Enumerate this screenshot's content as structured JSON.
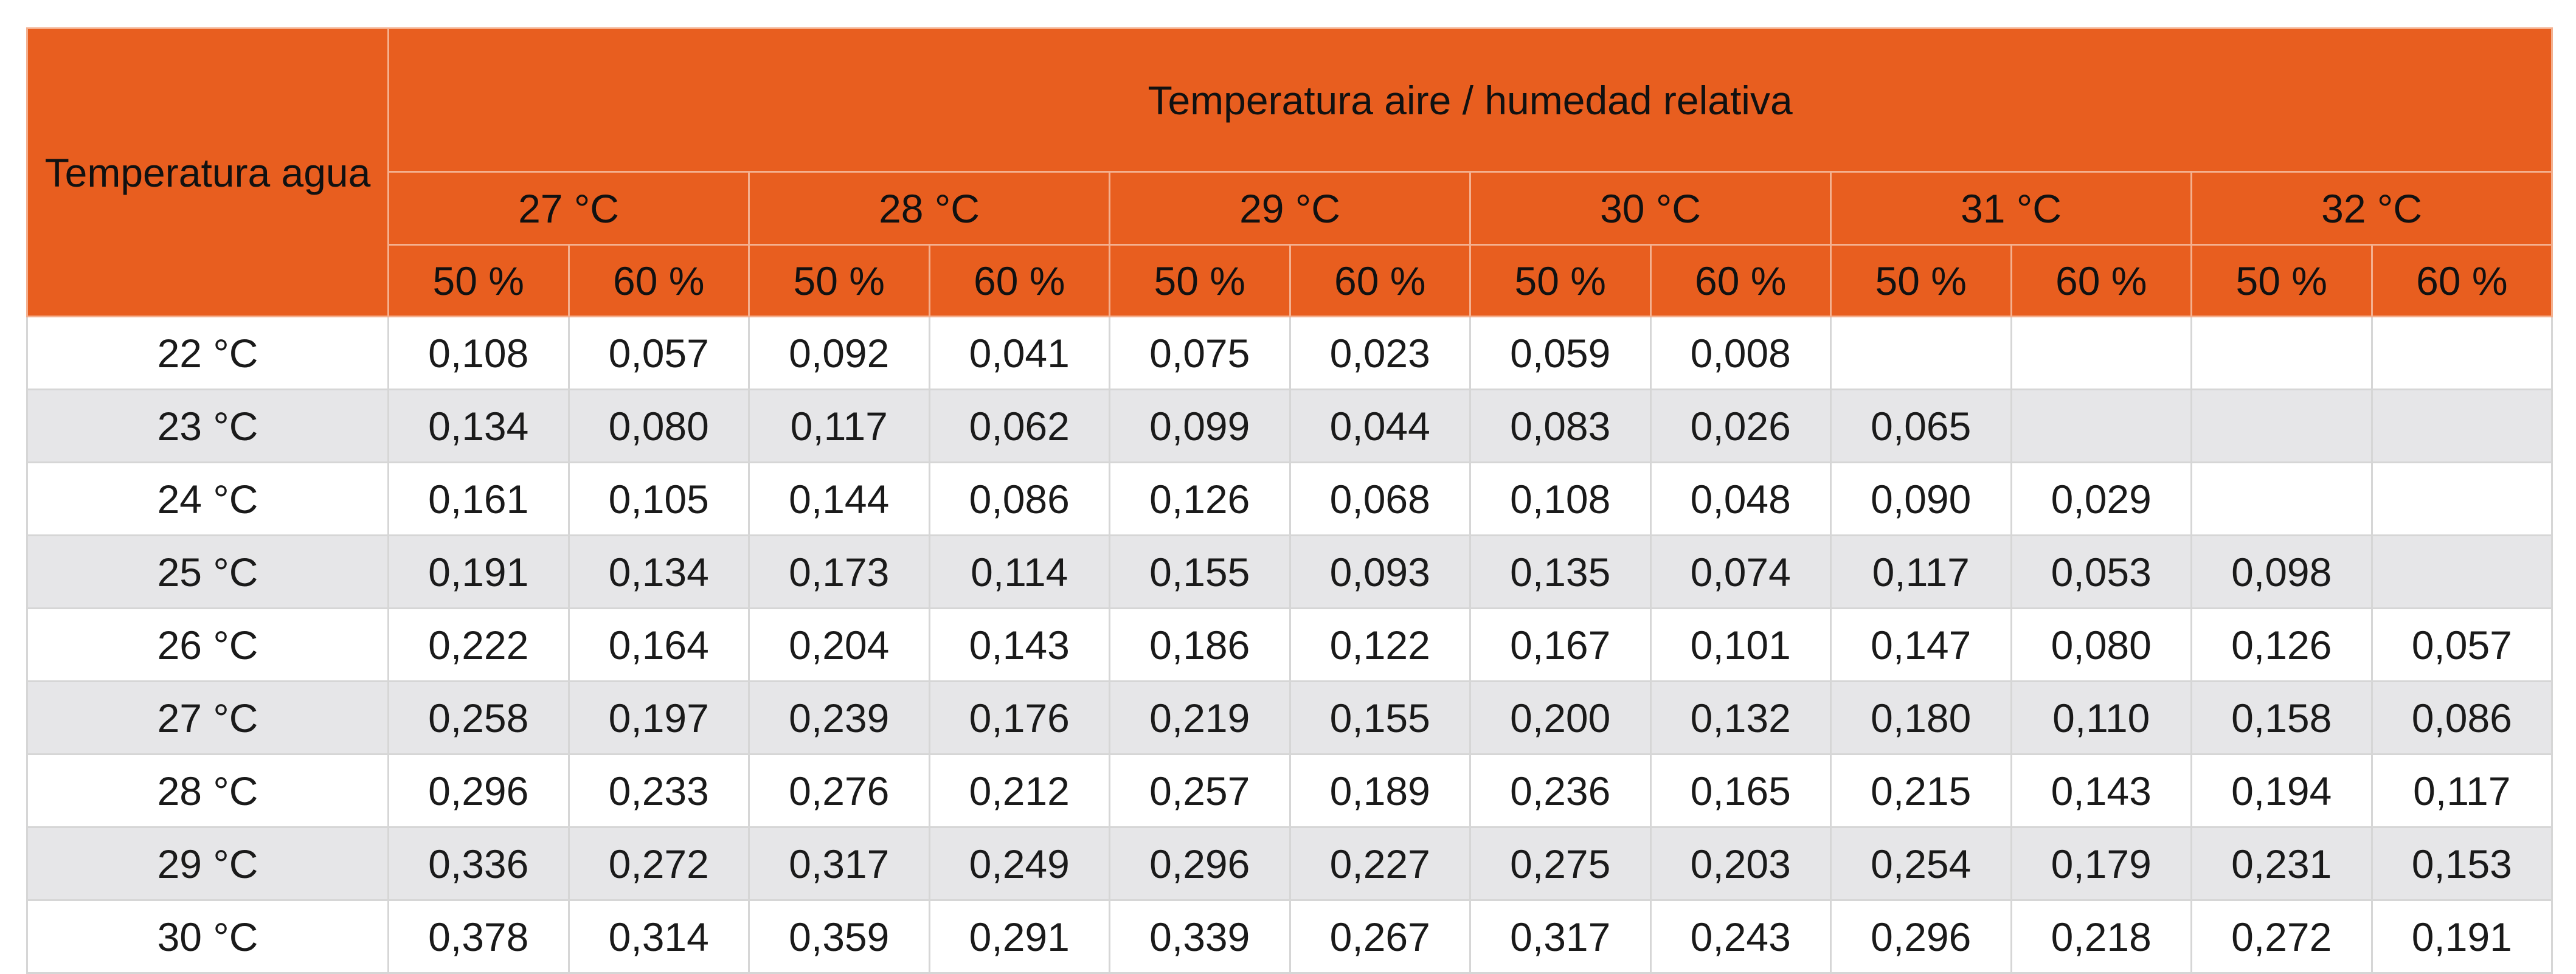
{
  "table": {
    "corner_header": "Temperatura agua",
    "group_header": "Temperatura aire / humedad relativa",
    "air_temperatures": [
      "27 °C",
      "28 °C",
      "29 °C",
      "30 °C",
      "31 °C",
      "32 °C"
    ],
    "humidity_labels": [
      "50 %",
      "60 %",
      "50 %",
      "60 %",
      "50 %",
      "60 %",
      "50 %",
      "60 %",
      "50 %",
      "60 %",
      "50 %",
      "60 %"
    ],
    "rows": [
      {
        "water": "22 °C",
        "values": [
          "0,108",
          "0,057",
          "0,092",
          "0,041",
          "0,075",
          "0,023",
          "0,059",
          "0,008",
          "",
          "",
          "",
          ""
        ]
      },
      {
        "water": "23 °C",
        "values": [
          "0,134",
          "0,080",
          "0,117",
          "0,062",
          "0,099",
          "0,044",
          "0,083",
          "0,026",
          "0,065",
          "",
          "",
          ""
        ]
      },
      {
        "water": "24 °C",
        "values": [
          "0,161",
          "0,105",
          "0,144",
          "0,086",
          "0,126",
          "0,068",
          "0,108",
          "0,048",
          "0,090",
          "0,029",
          "",
          ""
        ]
      },
      {
        "water": "25 °C",
        "values": [
          "0,191",
          "0,134",
          "0,173",
          "0,114",
          "0,155",
          "0,093",
          "0,135",
          "0,074",
          "0,117",
          "0,053",
          "0,098",
          ""
        ]
      },
      {
        "water": "26 °C",
        "values": [
          "0,222",
          "0,164",
          "0,204",
          "0,143",
          "0,186",
          "0,122",
          "0,167",
          "0,101",
          "0,147",
          "0,080",
          "0,126",
          "0,057"
        ]
      },
      {
        "water": "27 °C",
        "values": [
          "0,258",
          "0,197",
          "0,239",
          "0,176",
          "0,219",
          "0,155",
          "0,200",
          "0,132",
          "0,180",
          "0,110",
          "0,158",
          "0,086"
        ]
      },
      {
        "water": "28 °C",
        "values": [
          "0,296",
          "0,233",
          "0,276",
          "0,212",
          "0,257",
          "0,189",
          "0,236",
          "0,165",
          "0,215",
          "0,143",
          "0,194",
          "0,117"
        ]
      },
      {
        "water": "29 °C",
        "values": [
          "0,336",
          "0,272",
          "0,317",
          "0,249",
          "0,296",
          "0,227",
          "0,275",
          "0,203",
          "0,254",
          "0,179",
          "0,231",
          "0,153"
        ]
      },
      {
        "water": "30 °C",
        "values": [
          "0,378",
          "0,314",
          "0,359",
          "0,291",
          "0,339",
          "0,267",
          "0,317",
          "0,243",
          "0,296",
          "0,218",
          "0,272",
          "0,191"
        ]
      }
    ]
  },
  "colors": {
    "header_bg": "#e85e1f",
    "stripe_bg": "#e6e6e8"
  }
}
